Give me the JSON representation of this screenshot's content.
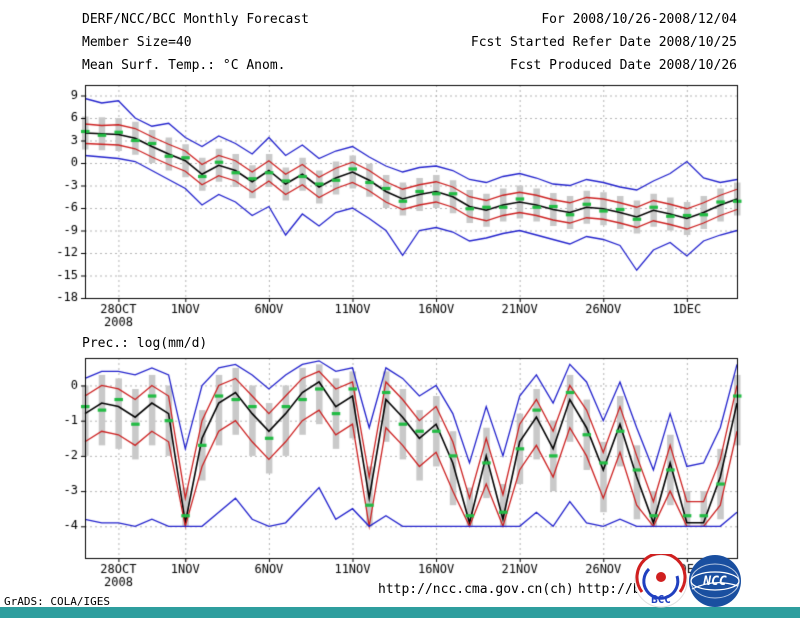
{
  "header": {
    "left_lines": [
      "DERF/NCC/BCC Monthly Forecast",
      "Member Size=40",
      "Mean Surf. Temp.: °C Anom."
    ],
    "right_lines": [
      "For 2008/10/26-2008/12/04",
      "Fcst Started Refer Date 2008/10/25",
      "Fcst Produced Date 2008/10/26"
    ]
  },
  "footer": {
    "url_ncc": "http://ncc.cma.gov.cn(ch)",
    "url_bcc": "http://bcc.c",
    "grads_credit": "GrADS: COLA/IGES",
    "bar_color": "#2E9E9E",
    "logos": [
      {
        "label": "BCC",
        "ring_color": "#D02020",
        "accent_color": "#2040C0"
      },
      {
        "label": "NCC",
        "globe_color": "#1A4FA0"
      }
    ]
  },
  "chart_data": [
    {
      "type": "line",
      "panel": "surface-temperature-anomaly",
      "title": "Mean Surf. Temp.: °C Anom.",
      "n_points": 40,
      "x_tick_indices": [
        2,
        6,
        11,
        16,
        21,
        26,
        31,
        36
      ],
      "x_tick_labels": [
        "28OCT",
        "1NOV",
        "6NOV",
        "11NOV",
        "16NOV",
        "21NOV",
        "26NOV",
        "1DEC"
      ],
      "x_year_label": "2008",
      "ylim": [
        -18,
        10.4
      ],
      "yticks": [
        9,
        6,
        3,
        0,
        -3,
        -6,
        -9,
        -12,
        -15,
        -18
      ],
      "grid": true,
      "bars": {
        "name": "ensemble-spread",
        "color": "#C9C9C9",
        "high": [
          6.2,
          6.1,
          6.0,
          5.5,
          4.4,
          3.4,
          2.5,
          0.7,
          1.9,
          1.2,
          -0.3,
          1.2,
          -0.6,
          0.7,
          -1.0,
          0.2,
          1.0,
          -0.1,
          -1.6,
          -2.6,
          -2.0,
          -1.6,
          -2.3,
          -3.6,
          -4.1,
          -3.4,
          -3.0,
          -3.4,
          -4.0,
          -4.4,
          -3.7,
          -3.9,
          -4.4,
          -5.0,
          -4.1,
          -4.6,
          -5.2,
          -4.4,
          -3.4,
          -2.6
        ],
        "low": [
          1.8,
          1.7,
          1.6,
          1.1,
          0.0,
          -1.0,
          -1.9,
          -3.7,
          -2.5,
          -3.2,
          -4.7,
          -3.2,
          -5.0,
          -3.7,
          -5.4,
          -4.2,
          -3.4,
          -4.5,
          -6.0,
          -7.0,
          -6.4,
          -6.0,
          -6.7,
          -8.0,
          -8.5,
          -7.8,
          -7.4,
          -7.8,
          -8.4,
          -8.8,
          -8.1,
          -8.3,
          -8.8,
          -9.4,
          -8.5,
          -9.0,
          -9.6,
          -8.8,
          -7.8,
          -7.0
        ]
      },
      "series": [
        {
          "name": "max",
          "color": "#2020CC",
          "values": [
            8.6,
            8.0,
            8.3,
            6.0,
            4.9,
            5.3,
            3.4,
            2.2,
            3.6,
            2.6,
            1.2,
            3.4,
            1.0,
            2.4,
            0.6,
            1.6,
            2.2,
            0.8,
            -0.4,
            -1.2,
            -0.6,
            -0.4,
            -1.0,
            -2.2,
            -2.6,
            -1.8,
            -1.4,
            -2.0,
            -2.8,
            -3.0,
            -2.2,
            -2.6,
            -3.2,
            -3.6,
            -2.4,
            -1.4,
            0.2,
            -2.0,
            -2.6,
            -2.2
          ]
        },
        {
          "name": "upper-quartile",
          "color": "#CC2020",
          "values": [
            5.2,
            5.0,
            5.1,
            4.6,
            3.5,
            2.5,
            1.6,
            -0.2,
            1.0,
            0.3,
            -1.2,
            0.3,
            -1.5,
            -0.2,
            -1.9,
            -0.7,
            0.1,
            -1.0,
            -2.5,
            -3.5,
            -2.9,
            -2.5,
            -3.2,
            -4.5,
            -5.0,
            -4.3,
            -3.9,
            -4.3,
            -4.9,
            -5.3,
            -4.6,
            -4.8,
            -5.3,
            -5.9,
            -5.0,
            -5.5,
            -6.1,
            -5.3,
            -4.3,
            -3.5
          ]
        },
        {
          "name": "ensemble-mean",
          "color": "#000000",
          "values": [
            4.0,
            3.9,
            3.8,
            3.3,
            2.2,
            1.2,
            0.3,
            -1.5,
            -0.3,
            -1.0,
            -2.5,
            -1.0,
            -2.8,
            -1.5,
            -3.2,
            -2.0,
            -1.2,
            -2.3,
            -3.8,
            -4.8,
            -4.2,
            -3.8,
            -4.5,
            -5.8,
            -6.3,
            -5.6,
            -5.2,
            -5.6,
            -6.2,
            -6.6,
            -5.9,
            -6.1,
            -6.6,
            -7.2,
            -6.3,
            -6.8,
            -7.4,
            -6.6,
            -5.6,
            -4.8
          ]
        },
        {
          "name": "lower-quartile",
          "color": "#CC2020",
          "values": [
            2.6,
            2.5,
            2.4,
            1.9,
            0.8,
            -0.2,
            -1.1,
            -2.9,
            -1.7,
            -2.4,
            -3.9,
            -2.4,
            -4.2,
            -2.9,
            -4.6,
            -3.4,
            -2.6,
            -3.7,
            -5.2,
            -6.2,
            -5.6,
            -5.2,
            -5.9,
            -7.2,
            -7.7,
            -7.0,
            -6.6,
            -7.0,
            -7.6,
            -8.0,
            -7.3,
            -7.5,
            -8.0,
            -8.6,
            -7.7,
            -8.2,
            -8.8,
            -8.0,
            -7.0,
            -6.2
          ]
        },
        {
          "name": "min",
          "color": "#2020CC",
          "values": [
            1.0,
            0.8,
            0.6,
            0.2,
            -1.0,
            -2.2,
            -3.4,
            -5.6,
            -4.2,
            -5.2,
            -7.0,
            -5.8,
            -9.6,
            -6.8,
            -8.4,
            -6.6,
            -6.0,
            -7.4,
            -9.0,
            -12.3,
            -9.0,
            -8.6,
            -9.2,
            -10.4,
            -10.0,
            -9.4,
            -9.0,
            -9.6,
            -10.2,
            -10.8,
            -9.8,
            -10.2,
            -11.0,
            -14.3,
            -11.6,
            -10.6,
            -12.4,
            -10.4,
            -9.6,
            -9.0
          ]
        }
      ],
      "markers": {
        "name": "ensemble-median",
        "color": "#22BB44",
        "values": [
          4.2,
          3.7,
          4.1,
          3.0,
          2.6,
          0.9,
          0.7,
          -1.8,
          0.1,
          -1.3,
          -2.1,
          -1.3,
          -2.4,
          -1.8,
          -2.8,
          -2.3,
          -0.8,
          -2.6,
          -3.4,
          -5.1,
          -3.8,
          -4.1,
          -4.1,
          -6.1,
          -5.9,
          -5.9,
          -4.8,
          -5.9,
          -5.8,
          -6.9,
          -5.5,
          -6.4,
          -6.2,
          -7.5,
          -5.9,
          -7.1,
          -7.0,
          -6.9,
          -5.2,
          -5.1
        ]
      }
    },
    {
      "type": "line",
      "panel": "precipitation",
      "title": "Prec.: log(mm/d)",
      "n_points": 40,
      "x_tick_indices": [
        2,
        6,
        11,
        16,
        21,
        26,
        31,
        36
      ],
      "x_tick_labels": [
        "28OCT",
        "1NOV",
        "6NOV",
        "11NOV",
        "16NOV",
        "21NOV",
        "26NOV",
        "1DEC"
      ],
      "x_year_label": "2008",
      "ylim": [
        -4.9,
        0.78
      ],
      "yticks": [
        0,
        -1,
        -2,
        -3,
        -4
      ],
      "grid": true,
      "bars": {
        "name": "ensemble-spread",
        "color": "#C9C9C9",
        "high": [
          0.0,
          0.3,
          0.2,
          -0.1,
          0.3,
          0.0,
          -2.9,
          -0.7,
          0.3,
          0.5,
          0.0,
          -0.5,
          0.0,
          0.5,
          0.6,
          0.2,
          0.4,
          -2.3,
          0.4,
          -0.1,
          -0.7,
          -0.3,
          -1.3,
          -2.9,
          -1.2,
          -2.8,
          -0.8,
          -0.1,
          -1.0,
          0.3,
          -0.4,
          -1.6,
          -0.3,
          -1.7,
          -3.0,
          -1.4,
          -3.0,
          -3.0,
          -1.8,
          0.3
        ],
        "low": [
          -2.0,
          -1.7,
          -1.8,
          -2.1,
          -1.7,
          -2.0,
          -4.0,
          -2.7,
          -1.7,
          -1.4,
          -2.0,
          -2.5,
          -2.0,
          -1.4,
          -1.1,
          -1.8,
          -1.5,
          -4.0,
          -1.6,
          -2.1,
          -2.7,
          -2.3,
          -3.4,
          -4.0,
          -3.2,
          -4.0,
          -2.8,
          -2.1,
          -3.0,
          -1.6,
          -2.4,
          -3.6,
          -2.3,
          -3.8,
          -4.0,
          -3.4,
          -4.0,
          -4.0,
          -3.8,
          -1.7
        ]
      },
      "series": [
        {
          "name": "max",
          "color": "#2020CC",
          "values": [
            0.2,
            0.4,
            0.4,
            0.3,
            0.5,
            0.3,
            -1.8,
            0.0,
            0.5,
            0.6,
            0.3,
            -0.1,
            0.3,
            0.6,
            0.7,
            0.4,
            0.5,
            -1.2,
            0.5,
            0.2,
            -0.3,
            0.0,
            -0.8,
            -2.2,
            -0.6,
            -2.0,
            -0.3,
            0.3,
            -0.5,
            0.6,
            0.1,
            -1.0,
            0.1,
            -1.2,
            -2.4,
            -0.8,
            -2.3,
            -2.2,
            -1.2,
            0.6
          ]
        },
        {
          "name": "upper-quartile",
          "color": "#CC2020",
          "values": [
            -0.3,
            0.0,
            -0.1,
            -0.4,
            0.0,
            -0.3,
            -3.2,
            -1.0,
            0.0,
            0.2,
            -0.3,
            -0.8,
            -0.3,
            0.2,
            0.4,
            -0.1,
            0.1,
            -2.6,
            0.1,
            -0.4,
            -1.0,
            -0.6,
            -1.6,
            -3.2,
            -1.5,
            -3.1,
            -1.1,
            -0.4,
            -1.3,
            0.0,
            -0.7,
            -1.9,
            -0.6,
            -2.0,
            -3.3,
            -1.7,
            -3.3,
            -3.3,
            -2.1,
            0.0
          ]
        },
        {
          "name": "ensemble-mean",
          "color": "#000000",
          "values": [
            -0.8,
            -0.5,
            -0.6,
            -0.9,
            -0.5,
            -0.8,
            -3.9,
            -1.5,
            -0.5,
            -0.2,
            -0.8,
            -1.3,
            -0.8,
            -0.2,
            0.1,
            -0.6,
            -0.3,
            -3.2,
            -0.4,
            -0.9,
            -1.5,
            -1.1,
            -2.2,
            -3.9,
            -2.0,
            -3.8,
            -1.6,
            -0.9,
            -1.8,
            -0.4,
            -1.2,
            -2.4,
            -1.1,
            -2.6,
            -3.9,
            -2.2,
            -3.9,
            -3.9,
            -2.6,
            -0.5
          ]
        },
        {
          "name": "lower-quartile",
          "color": "#CC2020",
          "values": [
            -1.6,
            -1.3,
            -1.4,
            -1.7,
            -1.3,
            -1.6,
            -4.0,
            -2.3,
            -1.3,
            -1.0,
            -1.6,
            -2.1,
            -1.6,
            -1.0,
            -0.7,
            -1.4,
            -1.1,
            -4.0,
            -1.2,
            -1.7,
            -2.3,
            -1.9,
            -3.0,
            -4.0,
            -2.8,
            -4.0,
            -2.4,
            -1.7,
            -2.6,
            -1.2,
            -2.0,
            -3.2,
            -1.9,
            -3.4,
            -4.0,
            -3.0,
            -4.0,
            -4.0,
            -3.4,
            -1.3
          ]
        },
        {
          "name": "min",
          "color": "#2020CC",
          "values": [
            -3.8,
            -3.9,
            -3.9,
            -4.0,
            -3.8,
            -4.0,
            -4.0,
            -4.0,
            -3.6,
            -3.2,
            -3.8,
            -4.0,
            -3.9,
            -3.4,
            -2.9,
            -3.8,
            -3.5,
            -4.0,
            -3.7,
            -4.0,
            -4.0,
            -4.0,
            -4.0,
            -4.0,
            -4.0,
            -4.0,
            -4.0,
            -3.6,
            -4.0,
            -3.3,
            -3.9,
            -4.0,
            -3.8,
            -4.0,
            -4.0,
            -4.0,
            -4.0,
            -4.0,
            -4.0,
            -3.6
          ]
        }
      ],
      "markers": {
        "name": "ensemble-median",
        "color": "#22BB44",
        "values": [
          -0.6,
          -0.7,
          -0.4,
          -1.1,
          -0.3,
          -1.0,
          -3.7,
          -1.7,
          -0.3,
          -0.4,
          -0.6,
          -1.5,
          -0.6,
          -0.4,
          -0.1,
          -0.8,
          -0.1,
          -3.4,
          -0.2,
          -1.1,
          -1.3,
          -1.3,
          -2.0,
          -3.7,
          -2.2,
          -3.6,
          -1.8,
          -0.7,
          -2.0,
          -0.2,
          -1.4,
          -2.2,
          -1.3,
          -2.4,
          -3.7,
          -2.4,
          -3.7,
          -3.7,
          -2.8,
          -0.3
        ]
      }
    }
  ]
}
